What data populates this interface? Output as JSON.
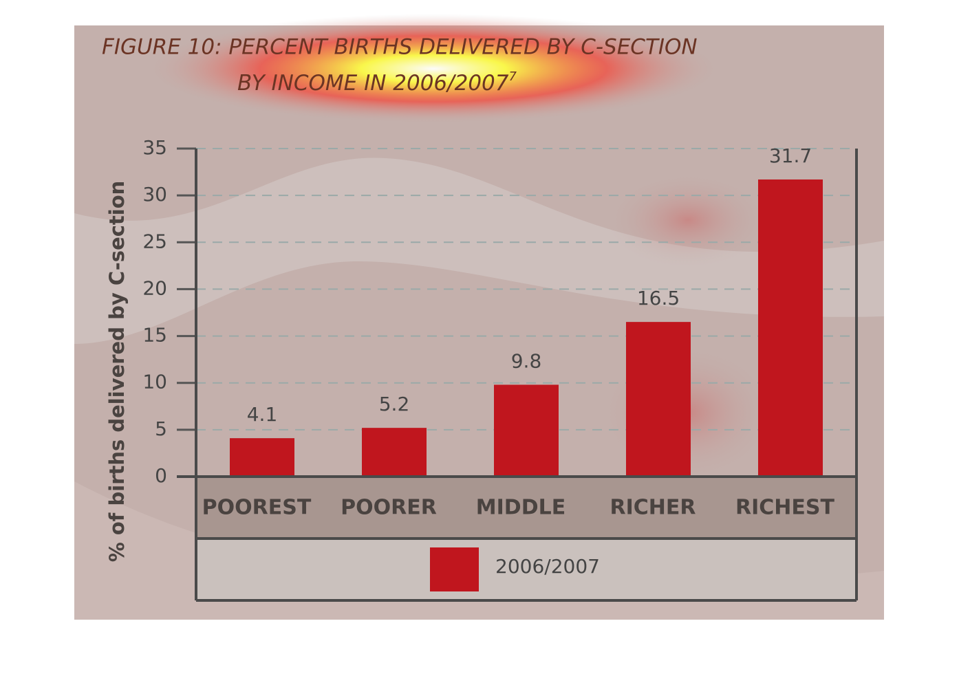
{
  "chart_data": {
    "type": "bar",
    "title": [
      "FIGURE 10: PERCENT BIRTHS DELIVERED BY C-SECTION",
      "BY INCOME IN 2006/2007"
    ],
    "footnote_mark": "7",
    "y_label": "% of births delivered by C-section",
    "categories": [
      "POOREST",
      "POORER",
      "MIDDLE",
      "RICHER",
      "RICHEST"
    ],
    "series": [
      {
        "name": "2006/2007",
        "color": "#c0161e",
        "values": [
          4.1,
          5.2,
          9.8,
          16.5,
          31.7
        ]
      }
    ],
    "ylim": [
      0,
      35
    ],
    "yticks": [
      0,
      5,
      10,
      15,
      20,
      25,
      30,
      35
    ],
    "grid": true
  }
}
